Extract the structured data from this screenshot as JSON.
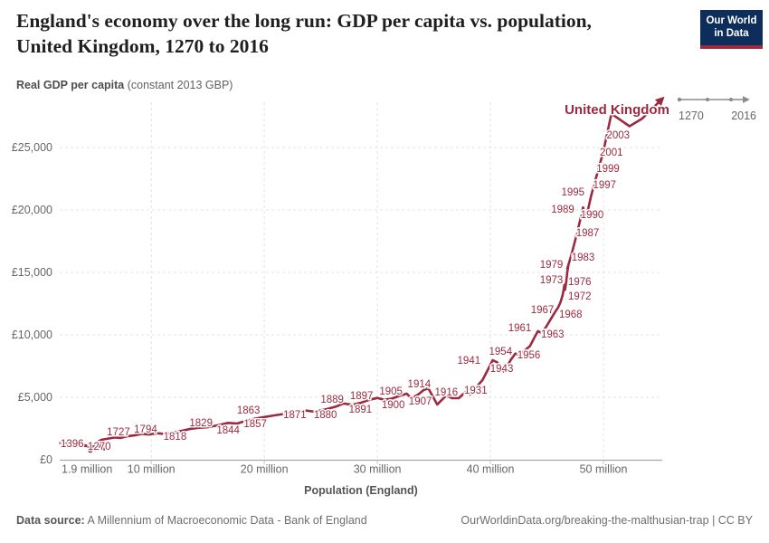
{
  "header": {
    "title_line1": "England's economy over the long run: GDP per capita vs. population,",
    "title_line2": "United Kingdom, 1270 to 2016",
    "subtitle_bold": "Real GDP per capita",
    "subtitle_rest": " (constant 2013 GBP)",
    "logo_line1": "Our World",
    "logo_line2": "in Data"
  },
  "timeline": {
    "start": "1270",
    "end": "2016"
  },
  "colors": {
    "series": "#9b2a40",
    "grid": "#e3e3e3",
    "axis_line": "#a8a8a8",
    "tick_text": "#666666",
    "axis_title_text": "#555555",
    "logo_bg": "#0d2e5b",
    "logo_stripe": "#9b2a40"
  },
  "chart_data": {
    "type": "line",
    "subtype": "connected-scatter",
    "title": "England's economy over the long run: GDP per capita vs. population, United Kingdom, 1270 to 2016",
    "series_label": "United Kingdom",
    "xlabel": "Population (England)",
    "ylabel": "Real GDP per capita (constant 2013 GBP)",
    "x_unit": "millions of people",
    "y_unit": "GBP (constant 2013)",
    "xlim": [
      1.9,
      55.2
    ],
    "ylim": [
      0,
      29500
    ],
    "grid": "dashed",
    "x_ticks": [
      {
        "value": 1.9,
        "label": "1.9 million"
      },
      {
        "value": 10,
        "label": "10 million"
      },
      {
        "value": 20,
        "label": "20 million"
      },
      {
        "value": 30,
        "label": "30 million"
      },
      {
        "value": 40,
        "label": "40 million"
      },
      {
        "value": 50,
        "label": "50 million"
      }
    ],
    "y_ticks": [
      {
        "value": 0,
        "label": "£0"
      },
      {
        "value": 5000,
        "label": "£5,000"
      },
      {
        "value": 10000,
        "label": "£10,000"
      },
      {
        "value": 15000,
        "label": "£15,000"
      },
      {
        "value": 20000,
        "label": "£20,000"
      },
      {
        "value": 25000,
        "label": "£25,000"
      }
    ],
    "path": [
      [
        4.6,
        760
      ],
      [
        4.9,
        840
      ],
      [
        5.05,
        760
      ],
      [
        5.3,
        860
      ],
      [
        5.45,
        780
      ],
      [
        5.65,
        900
      ],
      [
        5.8,
        820
      ],
      [
        5.95,
        930
      ],
      [
        5.2,
        1080
      ],
      [
        4.6,
        1000
      ],
      [
        4.0,
        1200
      ],
      [
        3.4,
        1120
      ],
      [
        2.95,
        1280
      ],
      [
        2.5,
        1240
      ],
      [
        2.15,
        1380
      ],
      [
        1.95,
        1330
      ],
      [
        2.1,
        1430
      ],
      [
        2.4,
        1360
      ],
      [
        2.9,
        1280
      ],
      [
        3.4,
        1150
      ],
      [
        4.2,
        1100
      ],
      [
        4.9,
        1160
      ],
      [
        5.5,
        1120
      ],
      [
        5.4,
        1320
      ],
      [
        5.3,
        1450
      ],
      [
        5.6,
        1600
      ],
      [
        6.8,
        1780
      ],
      [
        7.3,
        1750
      ],
      [
        7.8,
        1870
      ],
      [
        8.5,
        1950
      ],
      [
        9.2,
        2070
      ],
      [
        9.8,
        2020
      ],
      [
        10.5,
        2120
      ],
      [
        11.2,
        2060
      ],
      [
        11.9,
        2140
      ],
      [
        12.6,
        2300
      ],
      [
        13.5,
        2480
      ],
      [
        14.2,
        2560
      ],
      [
        15.0,
        2600
      ],
      [
        15.8,
        2750
      ],
      [
        16.8,
        2950
      ],
      [
        17.6,
        2900
      ],
      [
        18.4,
        3120
      ],
      [
        19.2,
        3300
      ],
      [
        20.0,
        3420
      ],
      [
        20.7,
        3520
      ],
      [
        21.6,
        3650
      ],
      [
        22.6,
        3850
      ],
      [
        23.6,
        3950
      ],
      [
        24.4,
        3850
      ],
      [
        25.5,
        4050
      ],
      [
        26.3,
        4250
      ],
      [
        27.0,
        4500
      ],
      [
        27.8,
        4400
      ],
      [
        28.5,
        4550
      ],
      [
        29.3,
        4800
      ],
      [
        30.0,
        4950
      ],
      [
        30.6,
        4800
      ],
      [
        31.3,
        4900
      ],
      [
        31.9,
        5100
      ],
      [
        32.6,
        5290
      ],
      [
        33.0,
        4930
      ],
      [
        33.6,
        5220
      ],
      [
        34.1,
        5580
      ],
      [
        34.5,
        5730
      ],
      [
        35.3,
        4420
      ],
      [
        36.1,
        5150
      ],
      [
        36.6,
        4930
      ],
      [
        37.2,
        4930
      ],
      [
        37.8,
        5440
      ],
      [
        38.2,
        5220
      ],
      [
        38.8,
        5870
      ],
      [
        39.3,
        6380
      ],
      [
        39.8,
        7250
      ],
      [
        40.2,
        7970
      ],
      [
        40.6,
        7800
      ],
      [
        40.9,
        7350
      ],
      [
        41.2,
        7050
      ],
      [
        41.5,
        7500
      ],
      [
        41.8,
        8000
      ],
      [
        42.2,
        8500
      ],
      [
        42.6,
        8400
      ],
      [
        43.1,
        8800
      ],
      [
        43.5,
        9100
      ],
      [
        43.9,
        9800
      ],
      [
        44.2,
        10300
      ],
      [
        44.5,
        10150
      ],
      [
        44.9,
        10600
      ],
      [
        45.3,
        11200
      ],
      [
        45.7,
        11800
      ],
      [
        46.0,
        12200
      ],
      [
        46.2,
        12600
      ],
      [
        46.4,
        13200
      ],
      [
        46.55,
        14000
      ],
      [
        46.6,
        13600
      ],
      [
        46.7,
        14200
      ],
      [
        46.8,
        15000
      ],
      [
        46.9,
        15600
      ],
      [
        46.8,
        15300
      ],
      [
        47.1,
        16200
      ],
      [
        47.4,
        17200
      ],
      [
        47.7,
        18300
      ],
      [
        48.0,
        19400
      ],
      [
        48.2,
        20200
      ],
      [
        48.35,
        19800
      ],
      [
        48.5,
        19500
      ],
      [
        48.7,
        20300
      ],
      [
        48.9,
        21100
      ],
      [
        49.2,
        22100
      ],
      [
        49.6,
        23400
      ],
      [
        50.0,
        24700
      ],
      [
        50.3,
        26000
      ],
      [
        50.7,
        27700
      ],
      [
        51.5,
        27200
      ],
      [
        52.3,
        26700
      ],
      [
        53.4,
        27300
      ],
      [
        54.3,
        28100
      ],
      [
        55.2,
        28900
      ]
    ],
    "labeled_points": [
      {
        "year": "1270",
        "pop": 5.4,
        "gdp": 1090
      },
      {
        "year": "1396",
        "pop": 3.0,
        "gdp": 1300
      },
      {
        "year": "1727",
        "pop": 7.1,
        "gdp": 2250
      },
      {
        "year": "1794",
        "pop": 9.5,
        "gdp": 2460
      },
      {
        "year": "1818",
        "pop": 12.1,
        "gdp": 1880
      },
      {
        "year": "1829",
        "pop": 14.4,
        "gdp": 2970
      },
      {
        "year": "1844",
        "pop": 16.8,
        "gdp": 2390
      },
      {
        "year": "1857",
        "pop": 19.2,
        "gdp": 2900
      },
      {
        "year": "1863",
        "pop": 18.6,
        "gdp": 3990
      },
      {
        "year": "1871",
        "pop": 22.7,
        "gdp": 3620
      },
      {
        "year": "1880",
        "pop": 25.4,
        "gdp": 3620
      },
      {
        "year": "1889",
        "pop": 26.0,
        "gdp": 4860
      },
      {
        "year": "1891",
        "pop": 28.5,
        "gdp": 4060
      },
      {
        "year": "1897",
        "pop": 28.6,
        "gdp": 5150
      },
      {
        "year": "1900",
        "pop": 31.4,
        "gdp": 4420
      },
      {
        "year": "1905",
        "pop": 31.2,
        "gdp": 5510
      },
      {
        "year": "1907",
        "pop": 33.8,
        "gdp": 4710
      },
      {
        "year": "1914",
        "pop": 33.7,
        "gdp": 6090
      },
      {
        "year": "1916",
        "pop": 36.1,
        "gdp": 5430
      },
      {
        "year": "1931",
        "pop": 38.7,
        "gdp": 5580
      },
      {
        "year": "1941",
        "pop": 38.1,
        "gdp": 7970
      },
      {
        "year": "1943",
        "pop": 41.0,
        "gdp": 7320
      },
      {
        "year": "1954",
        "pop": 40.9,
        "gdp": 8700
      },
      {
        "year": "1956",
        "pop": 43.4,
        "gdp": 8410
      },
      {
        "year": "1961",
        "pop": 42.6,
        "gdp": 10580
      },
      {
        "year": "1963",
        "pop": 45.5,
        "gdp": 10070
      },
      {
        "year": "1967",
        "pop": 44.6,
        "gdp": 12030
      },
      {
        "year": "1968",
        "pop": 47.1,
        "gdp": 11670
      },
      {
        "year": "1972",
        "pop": 47.9,
        "gdp": 13120
      },
      {
        "year": "1973",
        "pop": 45.4,
        "gdp": 14420
      },
      {
        "year": "1976",
        "pop": 47.9,
        "gdp": 14280
      },
      {
        "year": "1979",
        "pop": 45.4,
        "gdp": 15650
      },
      {
        "year": "1983",
        "pop": 48.2,
        "gdp": 16230
      },
      {
        "year": "1987",
        "pop": 48.6,
        "gdp": 18190
      },
      {
        "year": "1989",
        "pop": 46.4,
        "gdp": 20070
      },
      {
        "year": "1990",
        "pop": 49.0,
        "gdp": 19640
      },
      {
        "year": "1995",
        "pop": 47.3,
        "gdp": 21450
      },
      {
        "year": "1997",
        "pop": 50.1,
        "gdp": 22030
      },
      {
        "year": "1999",
        "pop": 50.4,
        "gdp": 23330
      },
      {
        "year": "2001",
        "pop": 50.7,
        "gdp": 24640
      },
      {
        "year": "2003",
        "pop": 51.3,
        "gdp": 26015
      }
    ],
    "series_label_anchor": {
      "pop": 51.2,
      "gdp": 28040
    },
    "legend_position": "none"
  },
  "footer": {
    "source_bold": "Data source:",
    "source_rest": " A Millennium of Macroeconomic Data - Bank of England",
    "credit": "OurWorldinData.org/breaking-the-malthusian-trap | CC BY"
  }
}
